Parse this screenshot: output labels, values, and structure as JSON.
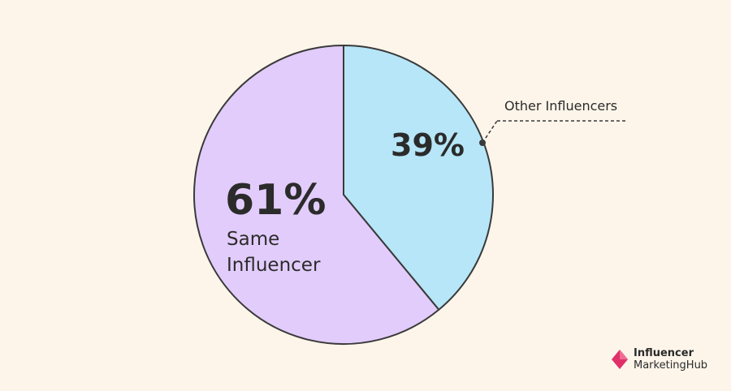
{
  "chart_data": {
    "type": "pie",
    "title": "",
    "slices": [
      {
        "label": "Other Influencers",
        "value": 39,
        "value_label": "39%",
        "color": "#b6e6f8"
      },
      {
        "label": "Same Influencer",
        "value": 61,
        "value_label": "61%",
        "color": "#e2ccfb"
      }
    ],
    "start_angle": "12 o'clock",
    "direction": "clockwise",
    "outline_color": "#3a3a3a"
  },
  "background_color": "#fdf5ea",
  "brand": {
    "line1": "Influencer",
    "line2": "MarketingHub",
    "mark_color": "#e0306a",
    "icon": "diamond-logo-icon"
  }
}
